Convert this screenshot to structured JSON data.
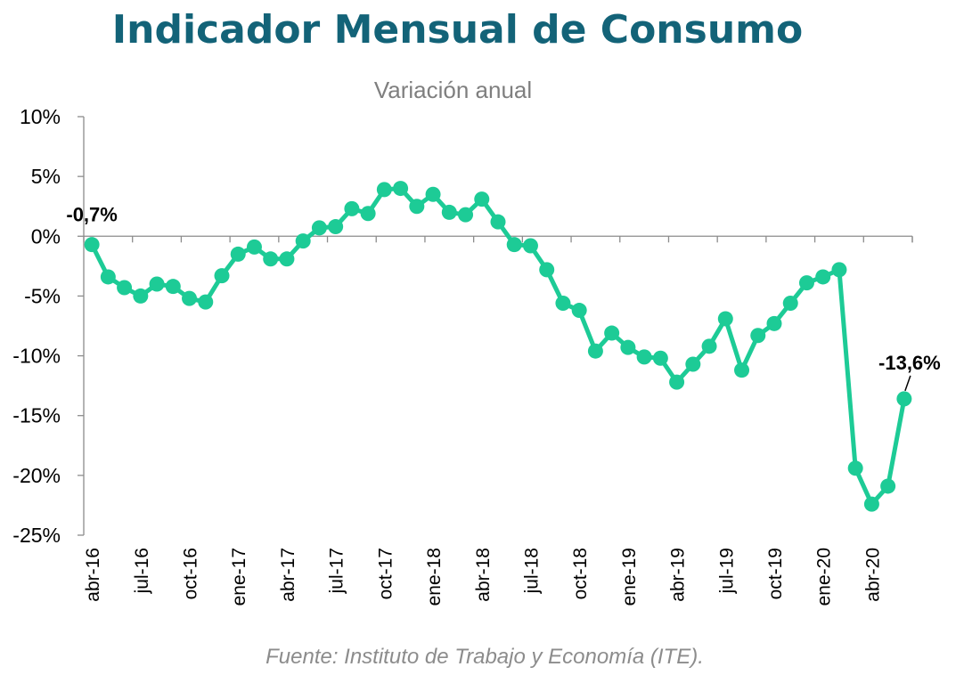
{
  "chart_data": {
    "type": "line",
    "title": "Indicador Mensual de Consumo",
    "subtitle": "Variación anual",
    "source": "Fuente: Instituto de Trabajo y Economía (ITE).",
    "ylim": [
      -25,
      10
    ],
    "yticks": [
      10,
      5,
      0,
      -5,
      -10,
      -15,
      -20,
      -25
    ],
    "ytick_labels": [
      "10%",
      "5%",
      "0%",
      "-5%",
      "-10%",
      "-15%",
      "-20%",
      "-25%"
    ],
    "x": [
      "abr-16",
      "may-16",
      "jun-16",
      "jul-16",
      "ago-16",
      "sep-16",
      "oct-16",
      "nov-16",
      "dic-16",
      "ene-17",
      "feb-17",
      "mar-17",
      "abr-17",
      "may-17",
      "jun-17",
      "jul-17",
      "ago-17",
      "sep-17",
      "oct-17",
      "nov-17",
      "dic-17",
      "ene-18",
      "feb-18",
      "mar-18",
      "abr-18",
      "may-18",
      "jun-18",
      "jul-18",
      "ago-18",
      "sep-18",
      "oct-18",
      "nov-18",
      "dic-18",
      "ene-19",
      "feb-19",
      "mar-19",
      "abr-19",
      "may-19",
      "jun-19",
      "jul-19",
      "ago-19",
      "sep-19",
      "oct-19",
      "nov-19",
      "dic-19",
      "ene-20",
      "feb-20",
      "mar-20",
      "abr-20",
      "may-20",
      "jun-20"
    ],
    "xtick_labels": [
      "abr-16",
      "jul-16",
      "oct-16",
      "ene-17",
      "abr-17",
      "jul-17",
      "oct-17",
      "ene-18",
      "abr-18",
      "jul-18",
      "oct-18",
      "ene-19",
      "abr-19",
      "jul-19",
      "oct-19",
      "ene-20",
      "abr-20"
    ],
    "series": [
      {
        "color": "#1dcb96",
        "values": [
          -0.7,
          -3.4,
          -4.3,
          -5.0,
          -4.0,
          -4.2,
          -5.2,
          -5.5,
          -3.3,
          -1.5,
          -0.9,
          -1.9,
          -1.9,
          -0.4,
          0.7,
          0.8,
          2.3,
          1.9,
          3.9,
          4.0,
          2.5,
          3.5,
          2.0,
          1.8,
          3.1,
          1.2,
          -0.7,
          -0.8,
          -2.8,
          -5.6,
          -6.2,
          -9.6,
          -8.1,
          -9.3,
          -10.1,
          -10.2,
          -12.2,
          -10.7,
          -9.2,
          -6.9,
          -11.2,
          -8.3,
          -7.3,
          -5.6,
          -3.9,
          -3.4,
          -2.8,
          -19.4,
          -22.4,
          -20.9,
          -13.6
        ]
      }
    ],
    "annotations": [
      {
        "label": "-0,7%",
        "index": 0
      },
      {
        "label": "-13,6%",
        "index": 50
      }
    ],
    "grid": false,
    "legend": "none"
  }
}
